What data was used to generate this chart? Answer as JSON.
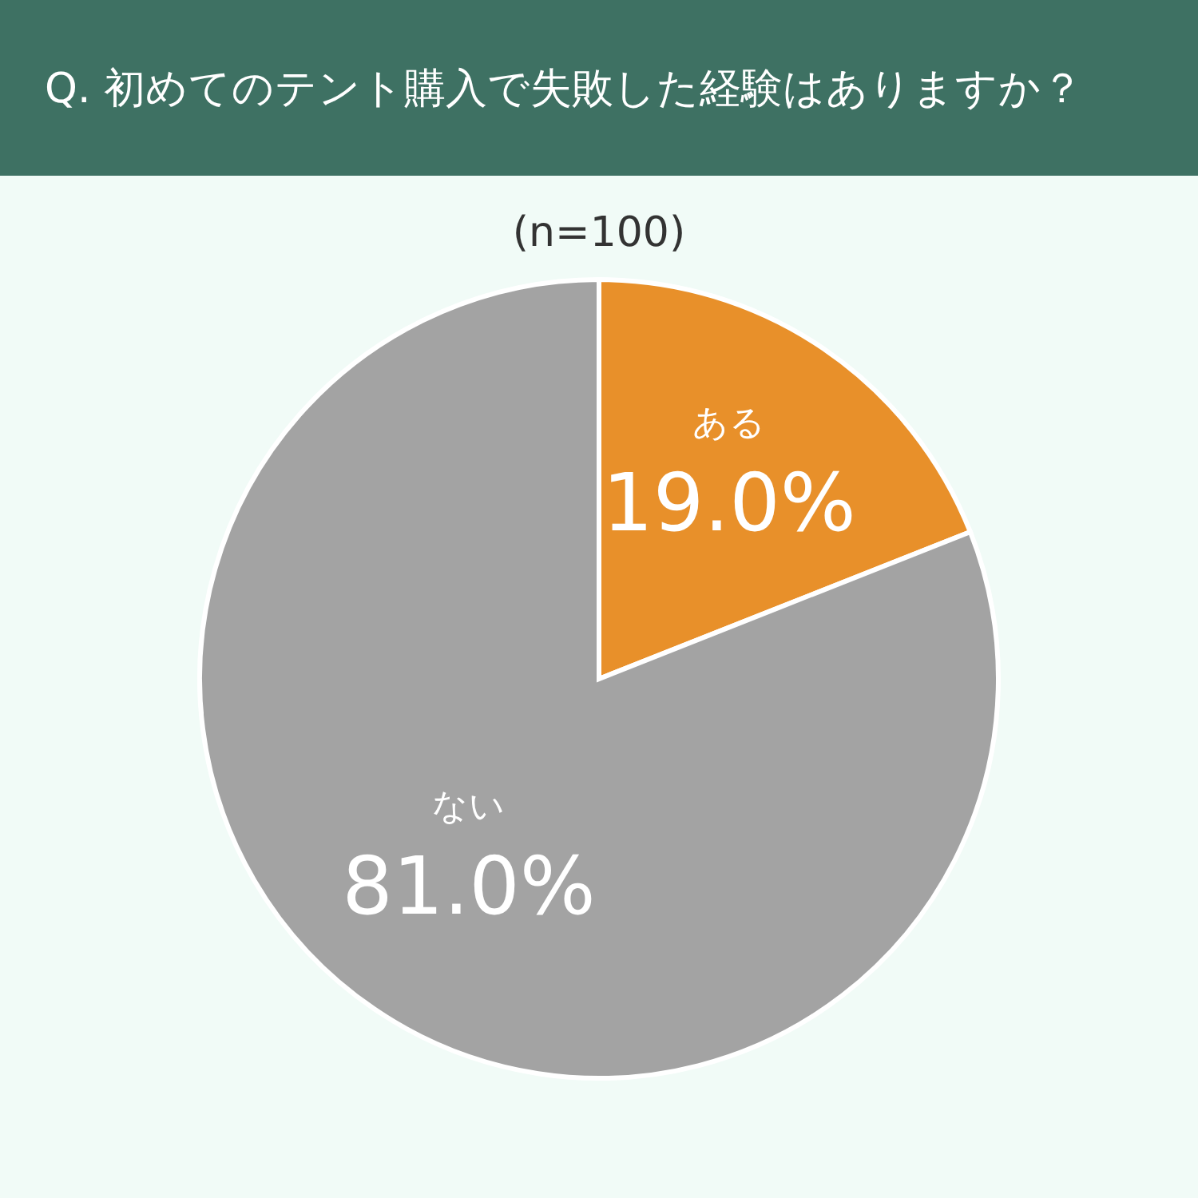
{
  "chart_data": {
    "type": "pie",
    "title": "Q. 初めてのテント購入で失敗した経験はありますか？",
    "subtitle": "(n=100)",
    "categories": [
      "ある",
      "ない"
    ],
    "values": [
      19.0,
      81.0
    ],
    "colors": [
      "#e8902a",
      "#a3a3a3"
    ],
    "value_labels": [
      "19.0%",
      "81.0%"
    ],
    "legend": false
  }
}
